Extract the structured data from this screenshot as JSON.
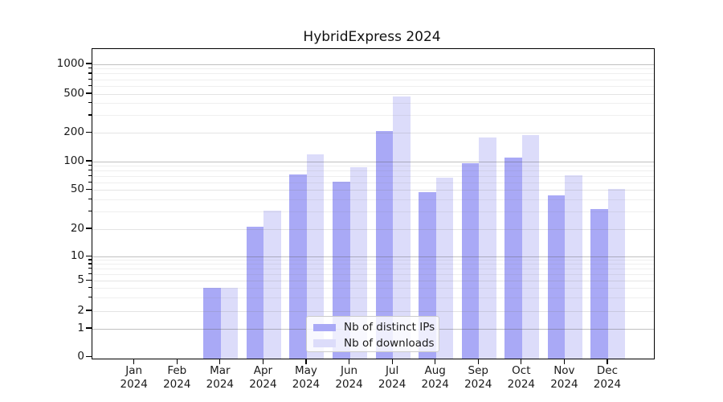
{
  "chart_data": {
    "type": "bar",
    "title": "HybridExpress 2024",
    "categories": [
      "Jan 2024",
      "Feb 2024",
      "Mar 2024",
      "Apr 2024",
      "May 2024",
      "Jun 2024",
      "Jul 2024",
      "Aug 2024",
      "Sep 2024",
      "Oct 2024",
      "Nov 2024",
      "Dec 2024"
    ],
    "series": [
      {
        "name": "Nb of distinct IPs",
        "color": "#a9a9f6",
        "values": [
          0,
          0,
          4,
          21,
          74,
          61,
          207,
          48,
          96,
          110,
          44,
          32
        ]
      },
      {
        "name": "Nb of downloads",
        "color": "#dcdcfa",
        "values": [
          0,
          0,
          4,
          31,
          120,
          88,
          470,
          68,
          180,
          190,
          72,
          52
        ]
      }
    ],
    "yscale": "log-like",
    "y_ticks": [
      0,
      1,
      2,
      5,
      10,
      20,
      50,
      100,
      200,
      500,
      1000
    ],
    "ylim": [
      0,
      1450
    ],
    "xlabel": "",
    "ylabel": "",
    "grid": true,
    "grid_over_bars": true,
    "legend_position": "lower center"
  },
  "colors": {
    "spine": "#000000",
    "text": "#1a1a1a",
    "grid_major": "#c0c0c0",
    "grid_minor": "#ededed",
    "legend_border": "#cccccc",
    "background": "#ffffff"
  }
}
